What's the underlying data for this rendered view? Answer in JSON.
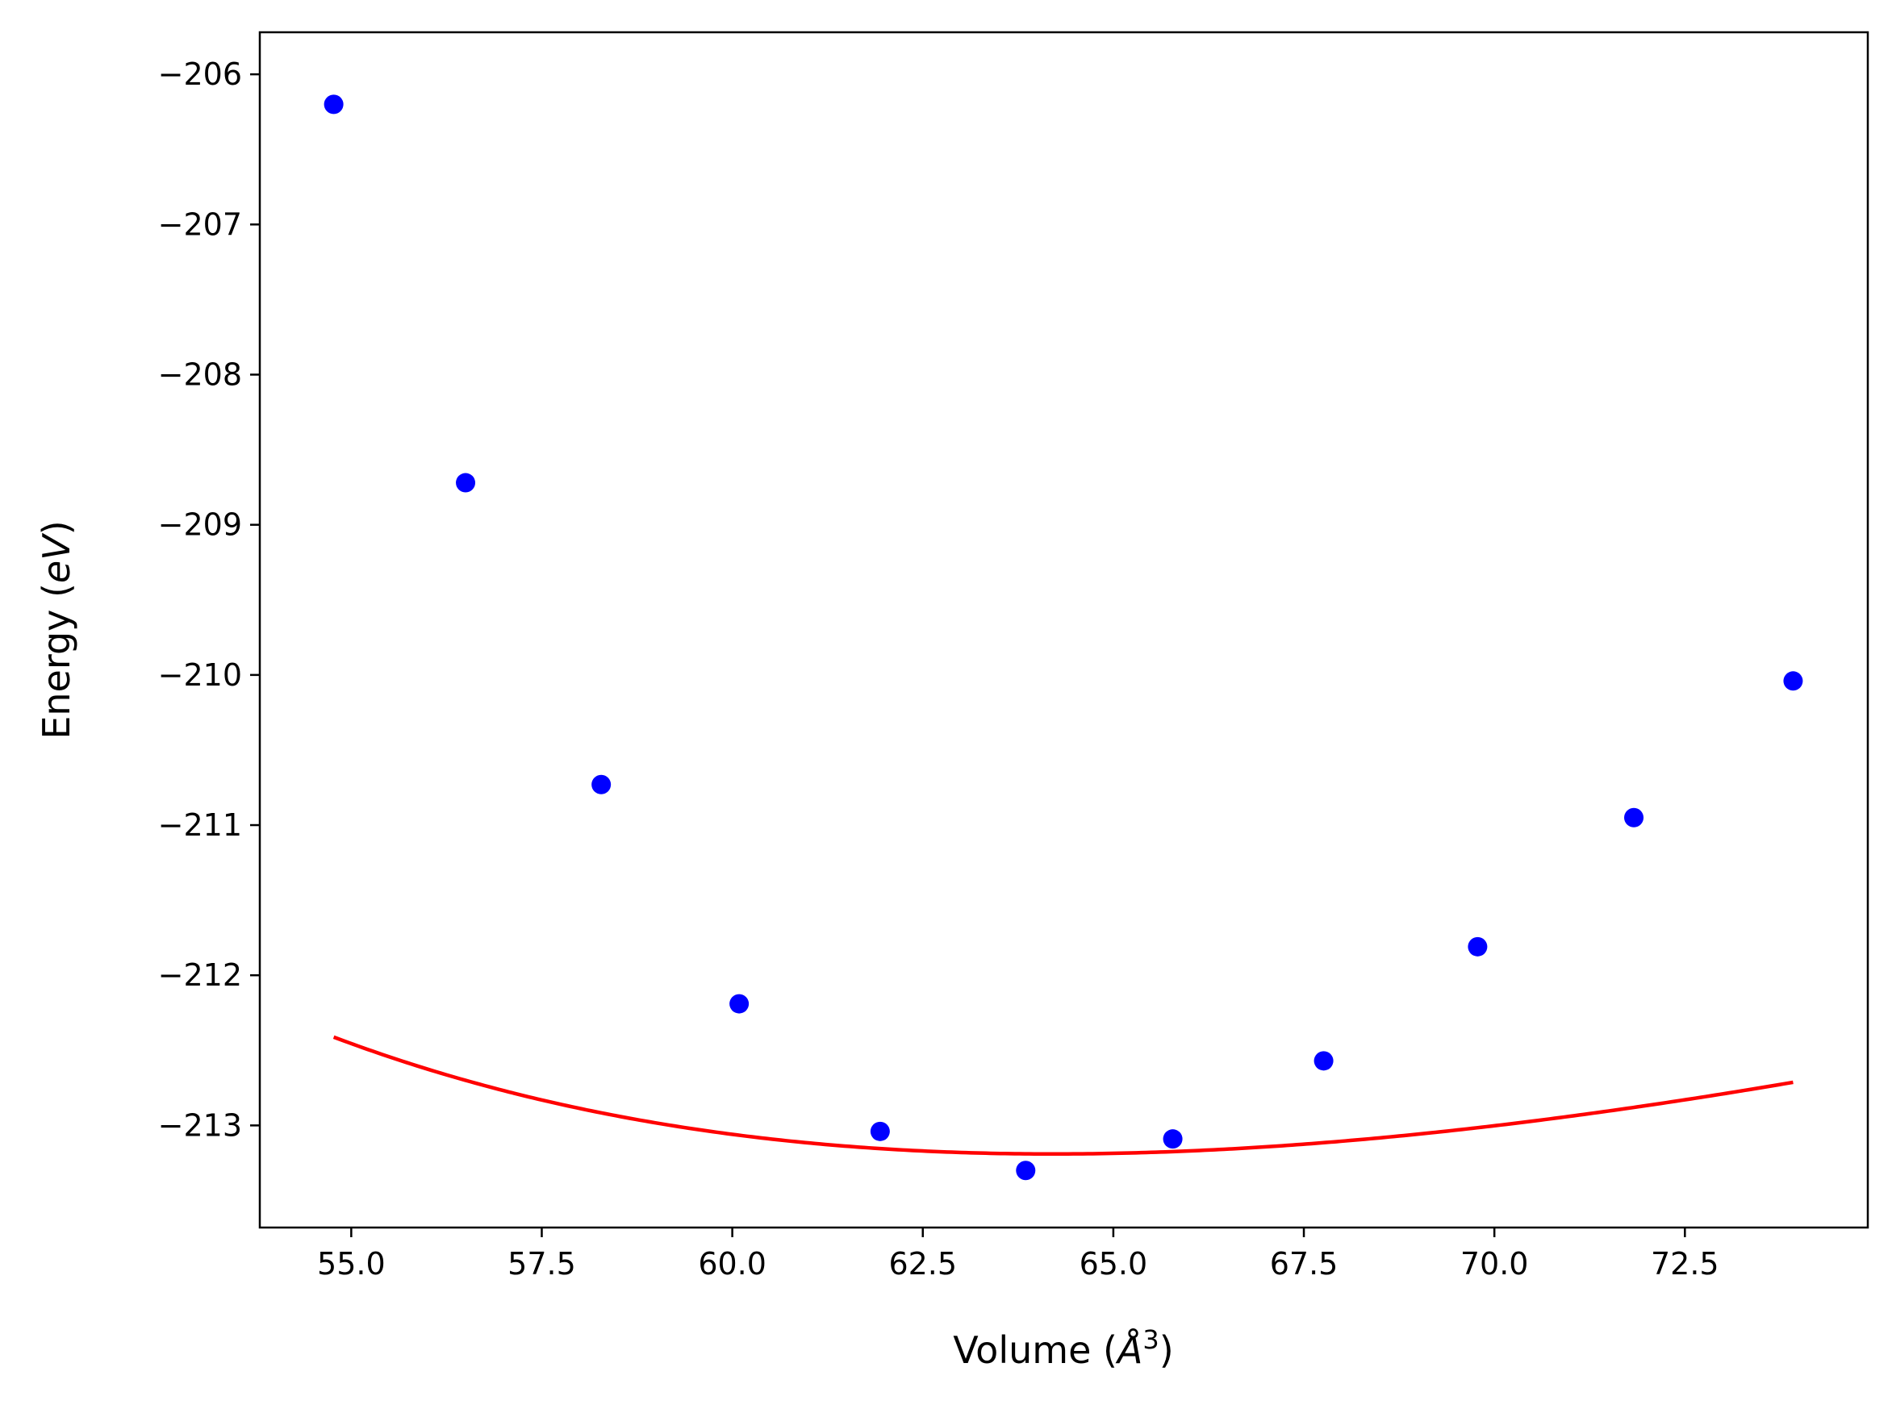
{
  "chart_data": {
    "type": "scatter",
    "xlabel": {
      "prefix": "Volume (",
      "symbol": "Å",
      "sup": "3",
      "suffix": ")"
    },
    "ylabel": {
      "prefix": "Energy (",
      "symbol": "eV",
      "suffix": ")"
    },
    "xlim": [
      53.8,
      74.9
    ],
    "ylim": [
      -213.68,
      -205.72
    ],
    "x_ticks": [
      55.0,
      57.5,
      60.0,
      62.5,
      65.0,
      67.5,
      70.0,
      72.5
    ],
    "x_tick_labels": [
      "55.0",
      "57.5",
      "60.0",
      "62.5",
      "65.0",
      "67.5",
      "70.0",
      "72.5"
    ],
    "y_ticks": [
      -206,
      -207,
      -208,
      -209,
      -210,
      -211,
      -212,
      -213
    ],
    "y_tick_labels": [
      "−206",
      "−207",
      "−208",
      "−209",
      "−210",
      "−211",
      "−212",
      "−213"
    ],
    "grid": false,
    "points": {
      "color": "#0000ff",
      "x": [
        54.77,
        56.5,
        58.28,
        60.09,
        61.94,
        63.85,
        65.78,
        67.76,
        69.78,
        71.83,
        73.92
      ],
      "y": [
        -206.2,
        -208.72,
        -210.73,
        -212.19,
        -213.04,
        -213.3,
        -213.09,
        -212.57,
        -211.81,
        -210.95,
        -210.04
      ]
    },
    "fit_curve": {
      "color": "#ff0000",
      "x_range": [
        54.77,
        73.92
      ],
      "E0": -213.19,
      "V0": 64.2,
      "B0": 0.84,
      "B0_prime": 4.5
    }
  }
}
